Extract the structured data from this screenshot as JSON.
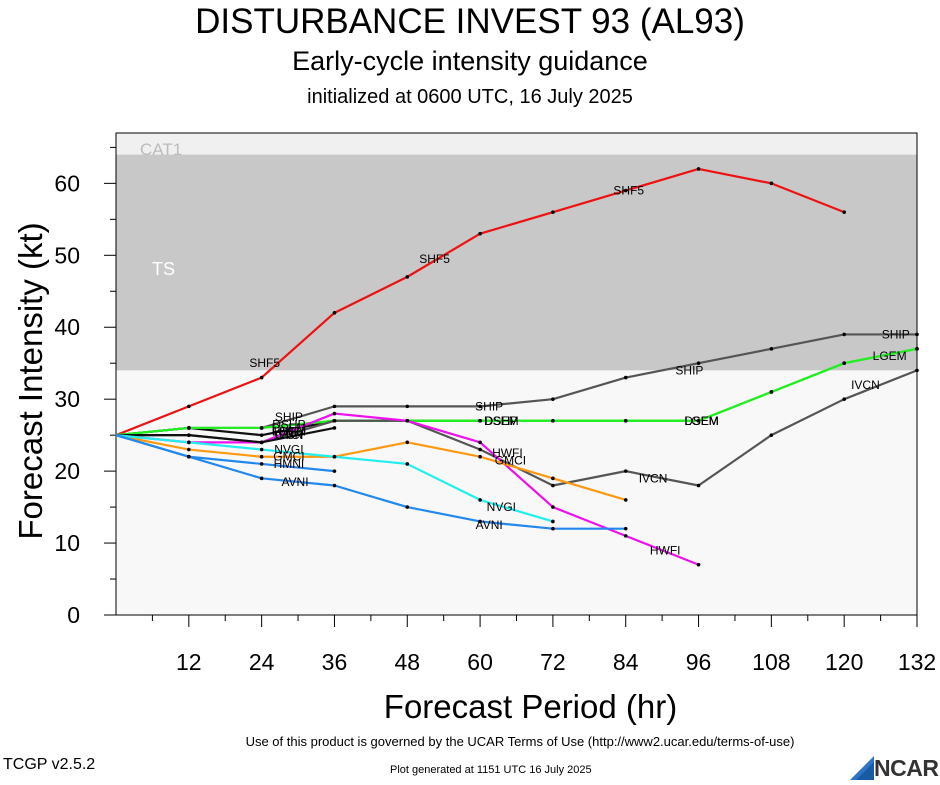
{
  "title": "DISTURBANCE INVEST 93 (AL93)",
  "subtitle": "Early-cycle intensity guidance",
  "subtitle2": "initialized at 0600 UTC, 16 July 2025",
  "footer_terms": "Use of this product is governed by the UCAR Terms of Use (http://www2.ucar.edu/terms-of-use)",
  "footer_generated": "Plot generated at 1151 UTC   16 July 2025",
  "version": "TCGP v2.5.2",
  "logo_text": "NCAR",
  "chart_data": {
    "type": "line",
    "xlabel": "Forecast Period (hr)",
    "ylabel": "Forecast Intensity (kt)",
    "xlim": [
      0,
      132
    ],
    "ylim": [
      0,
      67
    ],
    "xticks": [
      12,
      24,
      36,
      48,
      60,
      72,
      84,
      96,
      108,
      120,
      132
    ],
    "yticks": [
      0,
      10,
      20,
      30,
      40,
      50,
      60
    ],
    "bands": [
      {
        "label": "CAT1",
        "from": 64,
        "to": 67,
        "color": "#f0f0f0",
        "label_color": "#bbbbbb"
      },
      {
        "label": "TS",
        "from": 34,
        "to": 64,
        "color": "#c8c8c8",
        "label_color": "#ffffff"
      },
      {
        "label": "",
        "from": 0,
        "to": 34,
        "color": "#f8f8f8",
        "label_color": "#ffffff"
      }
    ],
    "series": [
      {
        "name": "SHF5",
        "color": "#ee1111",
        "x": [
          0,
          12,
          24,
          36,
          48,
          60,
          72,
          84,
          96,
          108,
          120
        ],
        "y": [
          25,
          29,
          33,
          42,
          47,
          53,
          56,
          59,
          62,
          60,
          56
        ],
        "label_at": [
          [
            24.5,
            35
          ],
          [
            52.5,
            49.5
          ],
          [
            84.5,
            59
          ]
        ]
      },
      {
        "name": "SHIP",
        "color": "#555555",
        "x": [
          0,
          12,
          24,
          36,
          48,
          60,
          72,
          84,
          96,
          108,
          120,
          132
        ],
        "y": [
          25,
          26,
          26,
          29,
          29,
          29,
          30,
          33,
          35,
          37,
          39,
          39
        ],
        "label_at": [
          [
            28.5,
            27.5
          ],
          [
            61.5,
            29
          ],
          [
            94.5,
            34
          ],
          [
            128.5,
            39
          ]
        ]
      },
      {
        "name": "DSHP",
        "color": "#111111",
        "x": [
          0,
          12,
          24,
          36,
          48,
          60
        ],
        "y": [
          25,
          26,
          25,
          27,
          27,
          27
        ],
        "label_at": [
          [
            28.5,
            26.5
          ],
          [
            63.5,
            27
          ]
        ]
      },
      {
        "name": "DSEM",
        "color": "#22ee22",
        "x": [
          0,
          12,
          24,
          36,
          48,
          60,
          72,
          84,
          96,
          108,
          120,
          132
        ],
        "y": [
          25,
          26,
          26,
          27,
          27,
          27,
          27,
          27,
          27,
          31,
          35,
          37
        ],
        "label_at": [
          [
            28.5,
            26
          ],
          [
            63.5,
            27
          ],
          [
            96.5,
            27
          ]
        ]
      },
      {
        "name": "LGEM",
        "color": "#22ee22",
        "x": [
          0,
          12,
          24,
          36,
          48,
          60,
          72,
          84,
          96,
          108,
          120,
          132
        ],
        "y": [
          25,
          26,
          26,
          27,
          27,
          27,
          27,
          27,
          27,
          31,
          35,
          37
        ],
        "label_at": [
          [
            28.5,
            25.5
          ],
          [
            96.5,
            27
          ],
          [
            127.5,
            36
          ]
        ]
      },
      {
        "name": "IVCN",
        "color": "#555555",
        "x": [
          0,
          12,
          24,
          36,
          48,
          60,
          72,
          84,
          96,
          108,
          120,
          132
        ],
        "y": [
          25,
          25,
          24,
          27,
          27,
          23,
          18,
          20,
          18,
          25,
          30,
          34
        ],
        "label_at": [
          [
            28.5,
            25
          ],
          [
            88.5,
            19
          ],
          [
            123.5,
            32
          ]
        ]
      },
      {
        "name": "HWFI",
        "color": "#ee11ee",
        "x": [
          0,
          12,
          24,
          36,
          48,
          60,
          72,
          84,
          96
        ],
        "y": [
          25,
          24,
          24,
          28,
          27,
          24,
          15,
          11,
          7
        ],
        "label_at": [
          [
            28.5,
            25.5
          ],
          [
            64.5,
            22.5
          ],
          [
            90.5,
            9
          ]
        ]
      },
      {
        "name": "CTCI",
        "color": "#111111",
        "x": [
          0,
          12,
          24,
          36
        ],
        "y": [
          25,
          25,
          24,
          26
        ],
        "label_at": [
          [
            28.5,
            25
          ]
        ]
      },
      {
        "name": "GMCI",
        "color": "#ff9911",
        "x": [
          0,
          12,
          24,
          36,
          48,
          60,
          72,
          84
        ],
        "y": [
          25,
          23,
          22,
          22,
          24,
          22,
          19,
          16
        ],
        "label_at": [
          [
            28.5,
            22
          ],
          [
            65,
            21.5
          ]
        ]
      },
      {
        "name": "NVGI",
        "color": "#22eeee",
        "x": [
          0,
          12,
          24,
          36,
          48,
          60,
          72
        ],
        "y": [
          25,
          24,
          23,
          22,
          21,
          16,
          13
        ],
        "label_at": [
          [
            28.5,
            23
          ],
          [
            63.5,
            15
          ]
        ]
      },
      {
        "name": "HMNI",
        "color": "#2288ee",
        "x": [
          0,
          12,
          24,
          36
        ],
        "y": [
          25,
          22,
          21,
          20
        ],
        "label_at": [
          [
            28.5,
            21
          ]
        ]
      },
      {
        "name": "AVNI",
        "color": "#2288ee",
        "x": [
          0,
          12,
          24,
          36,
          48,
          60,
          72,
          84
        ],
        "y": [
          25,
          22,
          19,
          18,
          15,
          13,
          12,
          12
        ],
        "label_at": [
          [
            29.5,
            18.5
          ],
          [
            61.5,
            12.5
          ]
        ]
      }
    ]
  }
}
